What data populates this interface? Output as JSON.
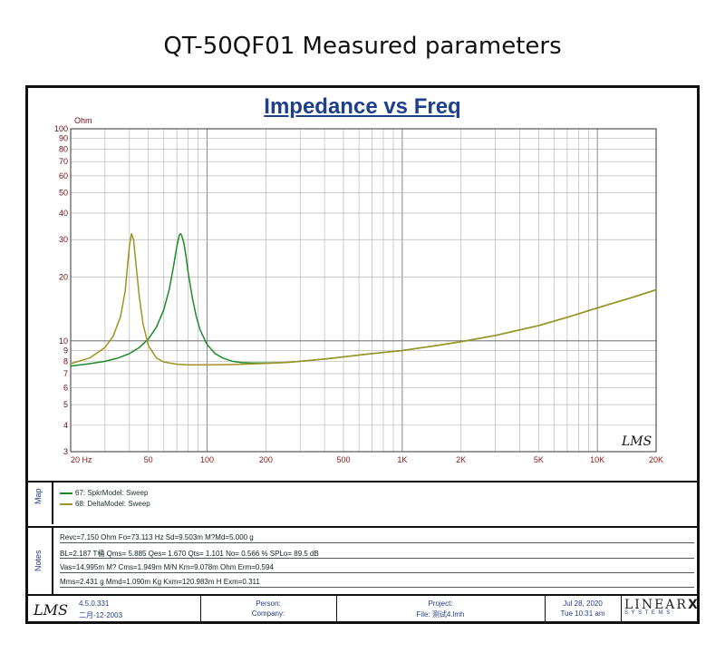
{
  "page_title": "QT-50QF01 Measured parameters",
  "chart_title": "Impedance vs Freq",
  "watermark": "LMS",
  "chart_data": {
    "type": "line",
    "title": "Impedance vs Freq",
    "xlabel": "",
    "ylabel": "Ohm",
    "x_scale": "log",
    "y_scale": "log",
    "xlim": [
      20,
      20000
    ],
    "ylim": [
      3,
      100
    ],
    "grid": true,
    "x_ticks": [
      {
        "v": 20,
        "label": "20  Hz"
      },
      {
        "v": 50,
        "label": "50"
      },
      {
        "v": 100,
        "label": "100"
      },
      {
        "v": 200,
        "label": "200"
      },
      {
        "v": 500,
        "label": "500"
      },
      {
        "v": 1000,
        "label": "1K"
      },
      {
        "v": 2000,
        "label": "2K"
      },
      {
        "v": 5000,
        "label": "5K"
      },
      {
        "v": 10000,
        "label": "10K"
      },
      {
        "v": 20000,
        "label": "20K"
      }
    ],
    "y_ticks": [
      {
        "v": 100,
        "label": "100"
      },
      {
        "v": 90,
        "label": "90"
      },
      {
        "v": 80,
        "label": "80"
      },
      {
        "v": 70,
        "label": "70"
      },
      {
        "v": 60,
        "label": "60"
      },
      {
        "v": 50,
        "label": "50"
      },
      {
        "v": 40,
        "label": "40"
      },
      {
        "v": 30,
        "label": "30"
      },
      {
        "v": 20,
        "label": "20"
      },
      {
        "v": 10,
        "label": "10"
      },
      {
        "v": 9,
        "label": "9"
      },
      {
        "v": 8,
        "label": "8"
      },
      {
        "v": 7,
        "label": "7"
      },
      {
        "v": 6,
        "label": "6"
      },
      {
        "v": 5,
        "label": "5"
      },
      {
        "v": 4,
        "label": "4"
      },
      {
        "v": 3,
        "label": "3"
      }
    ],
    "series": [
      {
        "name": "67: SpkrModel: Sweep",
        "color": "#1f8a2a",
        "x": [
          20,
          25,
          30,
          35,
          40,
          45,
          50,
          55,
          60,
          64,
          67,
          70,
          72,
          73,
          74,
          76,
          78,
          80,
          84,
          88,
          92,
          100,
          110,
          120,
          135,
          150,
          170,
          200,
          250,
          300,
          400,
          500,
          700,
          1000,
          1500,
          2000,
          3000,
          5000,
          7000,
          10000,
          15000,
          20000
        ],
        "y": [
          7.6,
          7.8,
          8.0,
          8.3,
          8.7,
          9.3,
          10.2,
          11.6,
          14.0,
          17.5,
          22.0,
          28.0,
          31.5,
          32.0,
          31.5,
          29.0,
          25.0,
          21.0,
          16.0,
          13.0,
          11.3,
          9.6,
          8.7,
          8.3,
          8.0,
          7.9,
          7.85,
          7.85,
          7.9,
          8.0,
          8.2,
          8.4,
          8.7,
          9.0,
          9.5,
          9.9,
          10.6,
          11.8,
          12.9,
          14.3,
          16.0,
          17.4
        ]
      },
      {
        "name": "68: DeltaModel: Sweep",
        "color": "#a09420",
        "x": [
          20,
          25,
          30,
          33,
          36,
          38,
          39,
          40,
          41,
          42,
          43,
          45,
          47,
          50,
          55,
          60,
          70,
          80,
          100,
          130,
          170,
          200,
          250,
          300,
          400,
          500,
          700,
          1000,
          1500,
          2000,
          3000,
          5000,
          7000,
          10000,
          15000,
          20000
        ],
        "y": [
          7.8,
          8.3,
          9.3,
          10.5,
          13.0,
          17.0,
          22.0,
          28.0,
          32.0,
          30.0,
          24.0,
          16.0,
          12.0,
          9.5,
          8.3,
          7.95,
          7.75,
          7.7,
          7.7,
          7.72,
          7.78,
          7.82,
          7.9,
          8.0,
          8.2,
          8.4,
          8.7,
          9.0,
          9.5,
          9.9,
          10.6,
          11.8,
          12.9,
          14.3,
          16.0,
          17.4
        ]
      }
    ]
  },
  "map": {
    "label": "Map",
    "legend": [
      "67: SpkrModel: Sweep",
      "68: DeltaModel: Sweep"
    ]
  },
  "notes": {
    "label": "Notes",
    "lines": [
      "Revc=7.150 Ohm  Fo=73.113 Hz  Sd=9.503m M?Md=5.000 g",
      "BL=2.187 T桶  Qms= 5.885  Qes= 1.670  Qts= 1.101  No= 0.566 %  SPLo= 89.5 dB",
      "Vas=14.995m M? Cms=1.949m M/N  Km=9.078m Ohm  Erm=0.594",
      "Mms=2.431 g  Mmd=1.090m Kg  Kxm=120.983m H  Exm=0.311"
    ]
  },
  "footer": {
    "version": "4.5.0.331",
    "date": "二月-12-2003",
    "person_label": "Person:",
    "company_label": "Company:",
    "project_label": "Project:",
    "file_label": "File: 测试4.lmh",
    "run_date": "Jul 28, 2020",
    "run_time": "Tue 10:31 am",
    "brand": "LINEAR",
    "brand_x": "X",
    "brand_sub": "S Y S T E M S",
    "logo": "LMS"
  }
}
